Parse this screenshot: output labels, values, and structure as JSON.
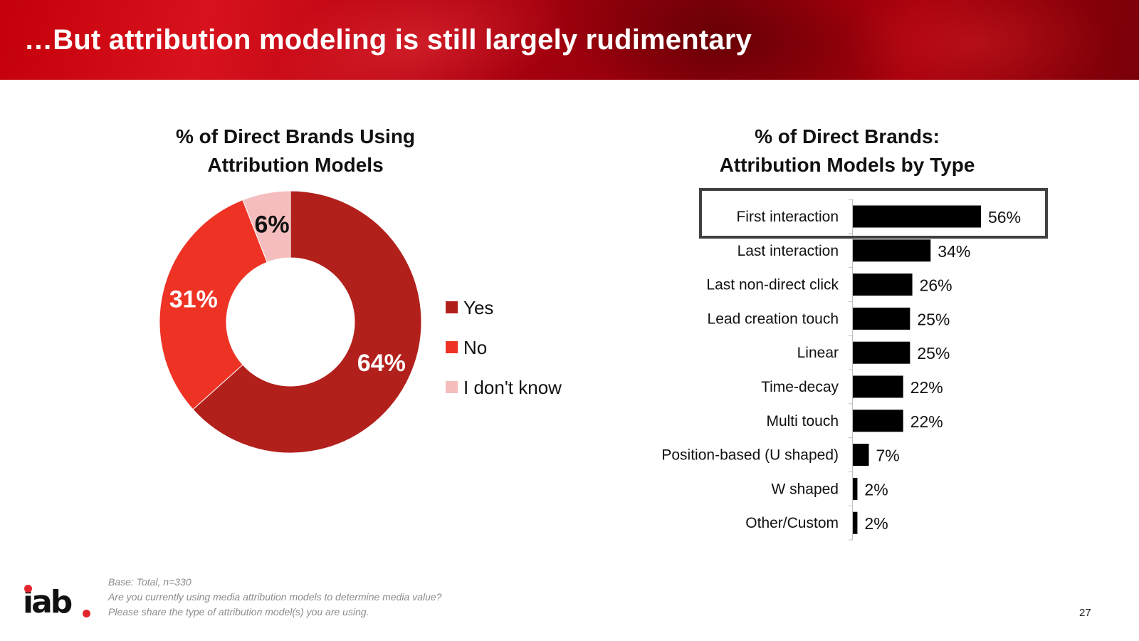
{
  "slide": {
    "title": "…But attribution modeling is still largely rudimentary",
    "page_number": "27",
    "logo_text": "iab",
    "footer": {
      "base": "Base: Total, n=330",
      "question1": "Are you currently using media attribution models to determine media value?",
      "question2": "Please share the type of attribution model(s) you are using."
    }
  },
  "chart_data": [
    {
      "type": "pie",
      "variant": "donut",
      "title_line1": "% of Direct Brands Using",
      "title_line2": "Attribution Models",
      "legend_position": "right",
      "slices": [
        {
          "name": "Yes",
          "value": 64,
          "label": "64%",
          "color": "#b2201c"
        },
        {
          "name": "No",
          "value": 31,
          "label": "31%",
          "color": "#ee3224"
        },
        {
          "name": "I don't know",
          "value": 6,
          "label": "6%",
          "color": "#f5bdbd"
        }
      ]
    },
    {
      "type": "bar",
      "orientation": "horizontal",
      "title_line1": "% of Direct Brands:",
      "title_line2": "Attribution Models by Type",
      "bar_color": "#000000",
      "highlight_category": "First interaction",
      "xlim": [
        0,
        56
      ],
      "categories": [
        "First interaction",
        "Last interaction",
        "Last non-direct click",
        "Lead creation touch",
        "Linear",
        "Time-decay",
        "Multi touch",
        "Position-based (U shaped)",
        "W shaped",
        "Other/Custom"
      ],
      "values": [
        56,
        34,
        26,
        25,
        25,
        22,
        22,
        7,
        2,
        2
      ],
      "labels": [
        "56%",
        "34%",
        "26%",
        "25%",
        "25%",
        "22%",
        "22%",
        "7%",
        "2%",
        "2%"
      ]
    }
  ]
}
